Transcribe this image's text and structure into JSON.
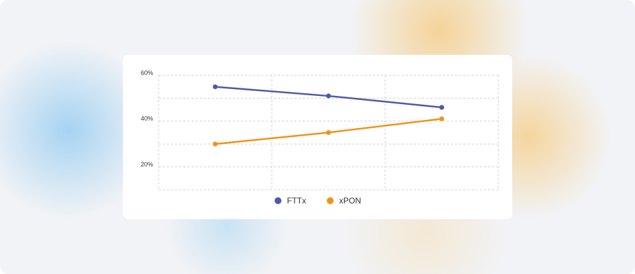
{
  "chart_data": {
    "type": "line",
    "categories": [
      null,
      null,
      null
    ],
    "series": [
      {
        "name": "FTTx",
        "color": "#4e5aa8",
        "values": [
          55,
          51,
          46
        ]
      },
      {
        "name": "xPON",
        "color": "#f0931a",
        "values": [
          30,
          35,
          41
        ]
      }
    ],
    "ylim": [
      10,
      60
    ],
    "yticks": [
      {
        "value": 20,
        "label": "20%"
      },
      {
        "value": 40,
        "label": "40%"
      },
      {
        "value": 60,
        "label": "60%"
      }
    ],
    "minor_yticks": [
      10,
      30,
      50
    ],
    "grid": true
  }
}
